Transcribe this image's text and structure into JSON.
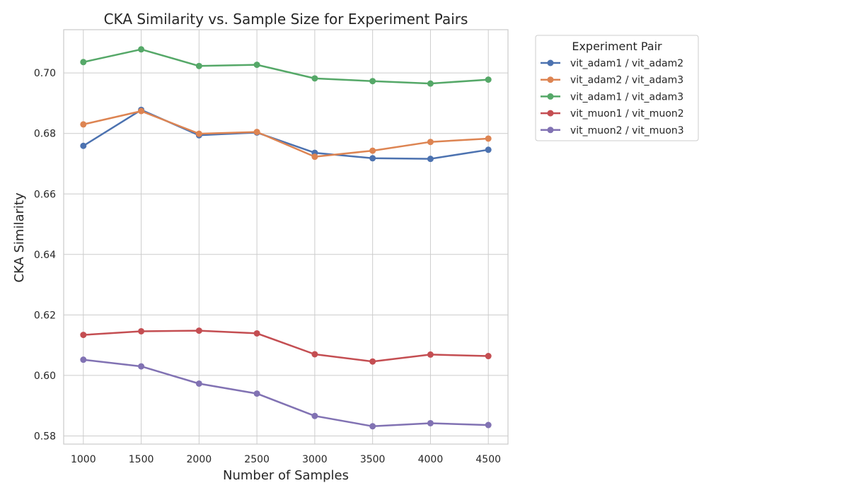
{
  "chart_data": {
    "type": "line",
    "title": "CKA Similarity vs. Sample Size for Experiment Pairs",
    "xlabel": "Number of Samples",
    "ylabel": "CKA Similarity",
    "x": [
      1000,
      1500,
      2000,
      2500,
      3000,
      3500,
      4000,
      4500
    ],
    "xlim": [
      830,
      4670
    ],
    "ylim": [
      0.5773,
      0.7143
    ],
    "x_ticks": [
      1000,
      1500,
      2000,
      2500,
      3000,
      3500,
      4000,
      4500
    ],
    "y_ticks": [
      0.58,
      0.6,
      0.62,
      0.64,
      0.66,
      0.68,
      0.7
    ],
    "y_tick_labels": [
      "0.58",
      "0.60",
      "0.62",
      "0.64",
      "0.66",
      "0.68",
      "0.70"
    ],
    "grid": true,
    "legend_title": "Experiment Pair",
    "legend_position": "outside-top-right",
    "series": [
      {
        "name": "vit_adam1 / vit_adam2",
        "color": "#4c72b0",
        "values": [
          0.6759,
          0.6878,
          0.6794,
          0.6803,
          0.6736,
          0.6718,
          0.6716,
          0.6746
        ]
      },
      {
        "name": "vit_adam2 / vit_adam3",
        "color": "#dd8452",
        "values": [
          0.683,
          0.6874,
          0.6799,
          0.6805,
          0.6723,
          0.6743,
          0.6772,
          0.6783
        ]
      },
      {
        "name": "vit_adam1 / vit_adam3",
        "color": "#55a868",
        "values": [
          0.7036,
          0.7078,
          0.7023,
          0.7027,
          0.6982,
          0.6973,
          0.6965,
          0.6978
        ]
      },
      {
        "name": "vit_muon1 / vit_muon2",
        "color": "#c44e52",
        "values": [
          0.6134,
          0.6146,
          0.6148,
          0.6139,
          0.607,
          0.6046,
          0.6069,
          0.6064
        ]
      },
      {
        "name": "vit_muon2 / vit_muon3",
        "color": "#8172b3",
        "values": [
          0.6052,
          0.603,
          0.5973,
          0.594,
          0.5866,
          0.5832,
          0.5842,
          0.5836
        ]
      }
    ]
  }
}
